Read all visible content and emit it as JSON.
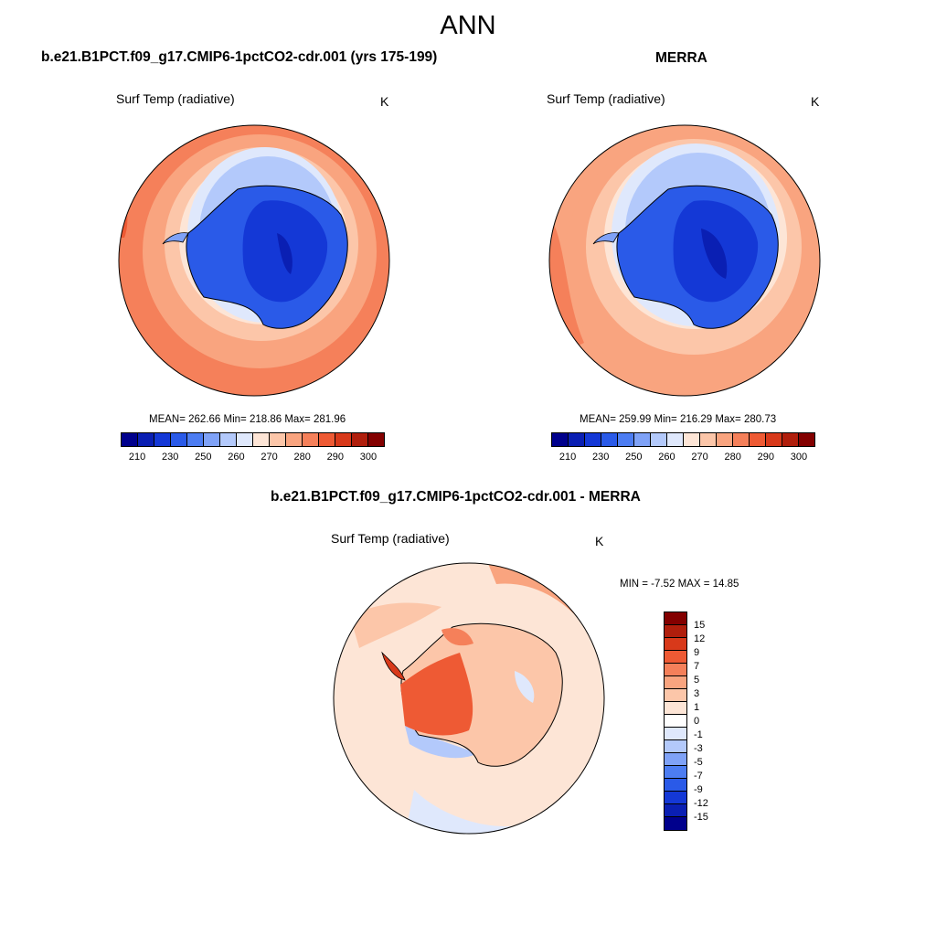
{
  "page_title": "ANN",
  "panels": [
    {
      "title": "b.e21.B1PCT.f09_g17.CMIP6-1pctCO2-cdr.001 (yrs 175-199)",
      "variable": "Surf Temp (radiative)",
      "units": "K",
      "stats": "MEAN= 262.66  Min= 218.86  Max= 281.96"
    },
    {
      "title": "MERRA",
      "variable": "Surf Temp (radiative)",
      "units": "K",
      "stats": "MEAN= 259.99  Min= 216.29  Max= 280.73"
    },
    {
      "title": "b.e21.B1PCT.f09_g17.CMIP6-1pctCO2-cdr.001 - MERRA",
      "variable": "Surf Temp (radiative)",
      "units": "K",
      "stats": "MIN =  -7.52 MAX =  14.85"
    }
  ],
  "abs_colorbar": {
    "colors": [
      "#00008c",
      "#0a1fb3",
      "#1438d6",
      "#2a5ae8",
      "#4d7df2",
      "#7fa2f7",
      "#b3c9fb",
      "#dfe8fc",
      "#fde5d6",
      "#fcc6a9",
      "#f9a47f",
      "#f5805a",
      "#ee5a34",
      "#d8391a",
      "#b01e0c",
      "#830000"
    ],
    "tick_labels": [
      "210",
      "230",
      "250",
      "260",
      "270",
      "280",
      "290",
      "300"
    ]
  },
  "diff_colorbar": {
    "colors": [
      "#830000",
      "#b01e0c",
      "#d8391a",
      "#ee5a34",
      "#f5805a",
      "#f9a47f",
      "#fcc6a9",
      "#fde5d6",
      "#ffffff",
      "#dfe8fc",
      "#b3c9fb",
      "#7fa2f7",
      "#4d7df2",
      "#2a5ae8",
      "#1438d6",
      "#0a1fb3",
      "#00008c"
    ],
    "tick_labels": [
      "15",
      "12",
      "9",
      "7",
      "5",
      "3",
      "1",
      "0",
      "-1",
      "-3",
      "-5",
      "-7",
      "-9",
      "-12",
      "-15"
    ]
  }
}
